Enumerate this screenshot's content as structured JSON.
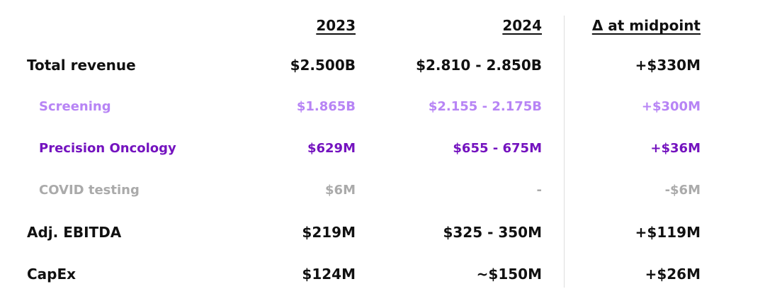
{
  "table": {
    "header": [
      "2023",
      "2024",
      "Δ at midpoint"
    ],
    "rows": [
      [
        "Total revenue",
        "$2.500B",
        "$2.810 - 2.850B",
        "+$330M"
      ],
      [
        "Screening",
        "$1.865B",
        "$2.155 - 2.175B",
        "+$300M"
      ],
      [
        "Precision Oncology",
        "$629M",
        "$655 - 675M",
        "+$36M"
      ],
      [
        "COVID testing",
        "$6M",
        "-",
        "-$6M"
      ],
      [
        "Adj. EBITDA",
        "$219M",
        "$325 - 350M",
        "+$119M"
      ],
      [
        "CapEx",
        "$124M",
        "~$150M",
        "+$26M"
      ]
    ]
  }
}
